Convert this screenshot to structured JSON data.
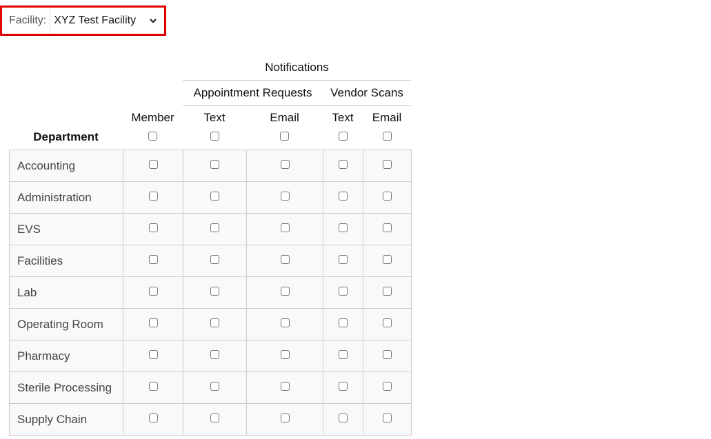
{
  "facility": {
    "label": "Facility:",
    "selected": "XYZ Test Facility"
  },
  "headers": {
    "notifications": "Notifications",
    "appointment_requests": "Appointment Requests",
    "vendor_scans": "Vendor Scans",
    "department": "Department",
    "member": "Member",
    "ar_text": "Text",
    "ar_email": "Email",
    "vs_text": "Text",
    "vs_email": "Email"
  },
  "departments": [
    "Accounting",
    "Administration",
    "EVS",
    "Facilities",
    "Lab",
    "Operating Room",
    "Pharmacy",
    "Sterile Processing",
    "Supply Chain"
  ],
  "colors": {
    "highlight_border": "#e00000"
  }
}
